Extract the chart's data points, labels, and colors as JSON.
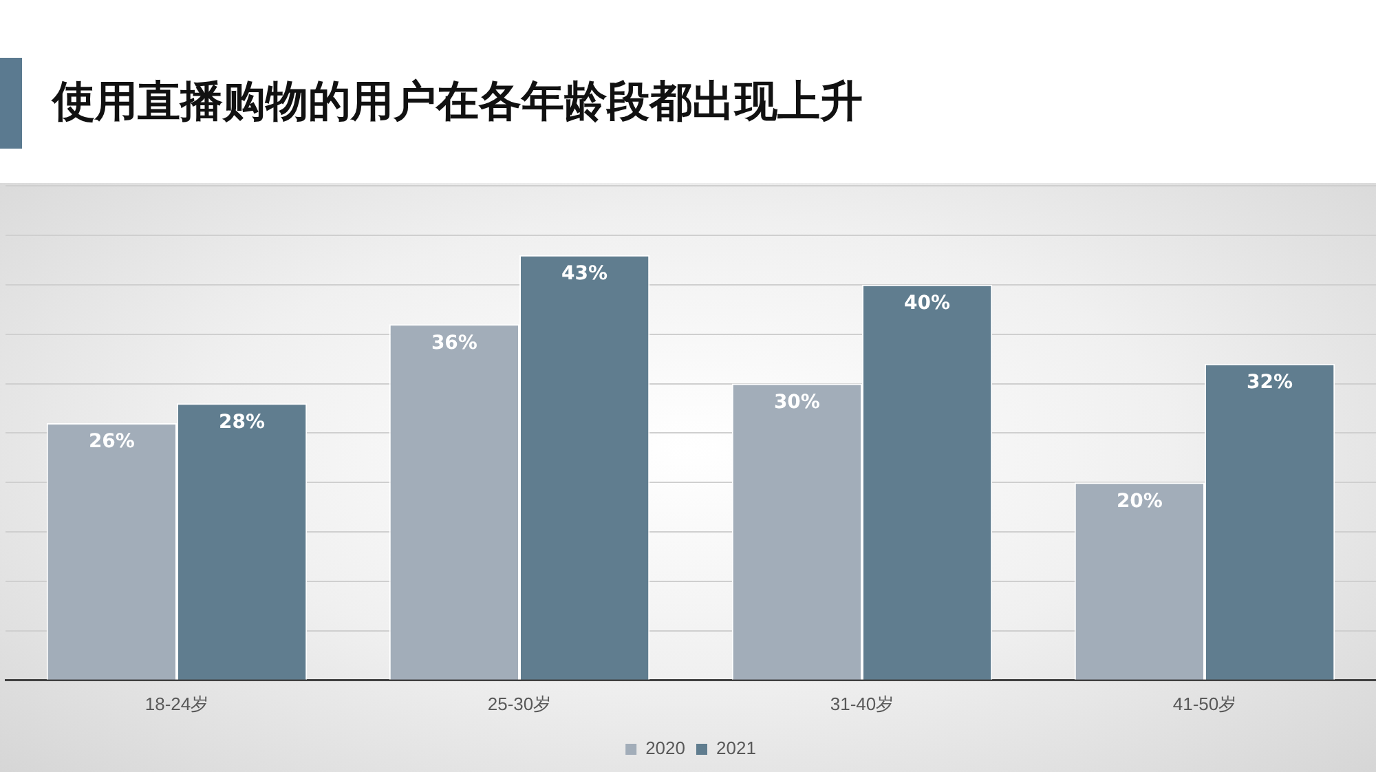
{
  "chart_data": {
    "type": "bar",
    "title": "使用直播购物的用户在各年龄段都出现上升",
    "categories": [
      "18-24岁",
      "25-30岁",
      "31-40岁",
      "41-50岁"
    ],
    "series": [
      {
        "name": "2020",
        "color": "#a2adb9",
        "values": [
          26,
          36,
          30,
          20
        ],
        "value_labels": [
          "26%",
          "36%",
          "30%",
          "20%"
        ]
      },
      {
        "name": "2021",
        "color": "#607d8f",
        "values": [
          28,
          43,
          40,
          32
        ],
        "value_labels": [
          "28%",
          "43%",
          "40%",
          "32%"
        ]
      }
    ],
    "ylim": [
      0,
      50
    ],
    "yticks": [
      {
        "value": 0,
        "label": null
      },
      {
        "value": 5,
        "label": null
      },
      {
        "value": 10,
        "label": null
      },
      {
        "value": 15,
        "label": null
      },
      {
        "value": 20,
        "label": null
      },
      {
        "value": 25,
        "label": null
      },
      {
        "value": 30,
        "label": null
      },
      {
        "value": 35,
        "label": null
      },
      {
        "value": 40,
        "label": null
      },
      {
        "value": 45,
        "label": null
      },
      {
        "value": 50,
        "label": null
      }
    ],
    "grid": "y",
    "legend": "bottom",
    "tick_labels": "x"
  }
}
